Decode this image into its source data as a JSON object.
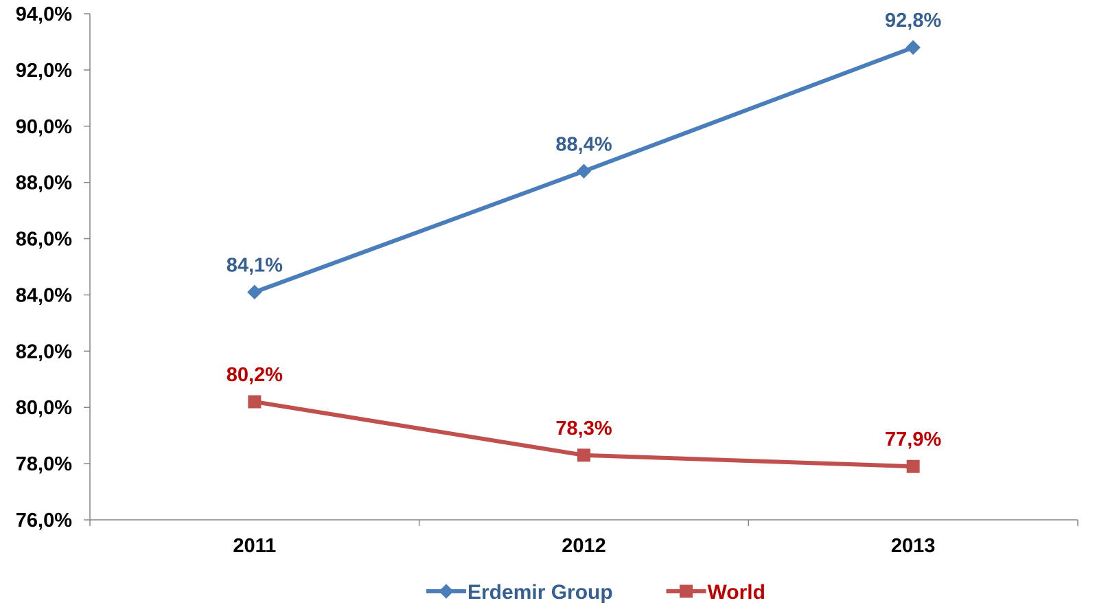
{
  "chart_data": {
    "type": "line",
    "title": "",
    "xlabel": "",
    "ylabel": "",
    "categories": [
      "2011",
      "2012",
      "2013"
    ],
    "ylim": [
      76,
      94
    ],
    "yticks": [
      76,
      78,
      80,
      82,
      84,
      86,
      88,
      90,
      92,
      94
    ],
    "ytick_labels": [
      "76,0%",
      "78,0%",
      "80,0%",
      "82,0%",
      "84,0%",
      "86,0%",
      "88,0%",
      "90,0%",
      "92,0%",
      "94,0%"
    ],
    "grid": false,
    "legend_position": "bottom",
    "series": [
      {
        "name": "Erdemir Group",
        "values": [
          84.1,
          88.4,
          92.8
        ],
        "labels": [
          "84,1%",
          "88,4%",
          "92,8%"
        ],
        "color": "#4a7ebb",
        "label_color": "#376092",
        "marker": "diamond"
      },
      {
        "name": "World",
        "values": [
          80.2,
          78.3,
          77.9
        ],
        "labels": [
          "80,2%",
          "78,3%",
          "77,9%"
        ],
        "color": "#c0504d",
        "label_color": "#c00000",
        "marker": "square"
      }
    ]
  }
}
